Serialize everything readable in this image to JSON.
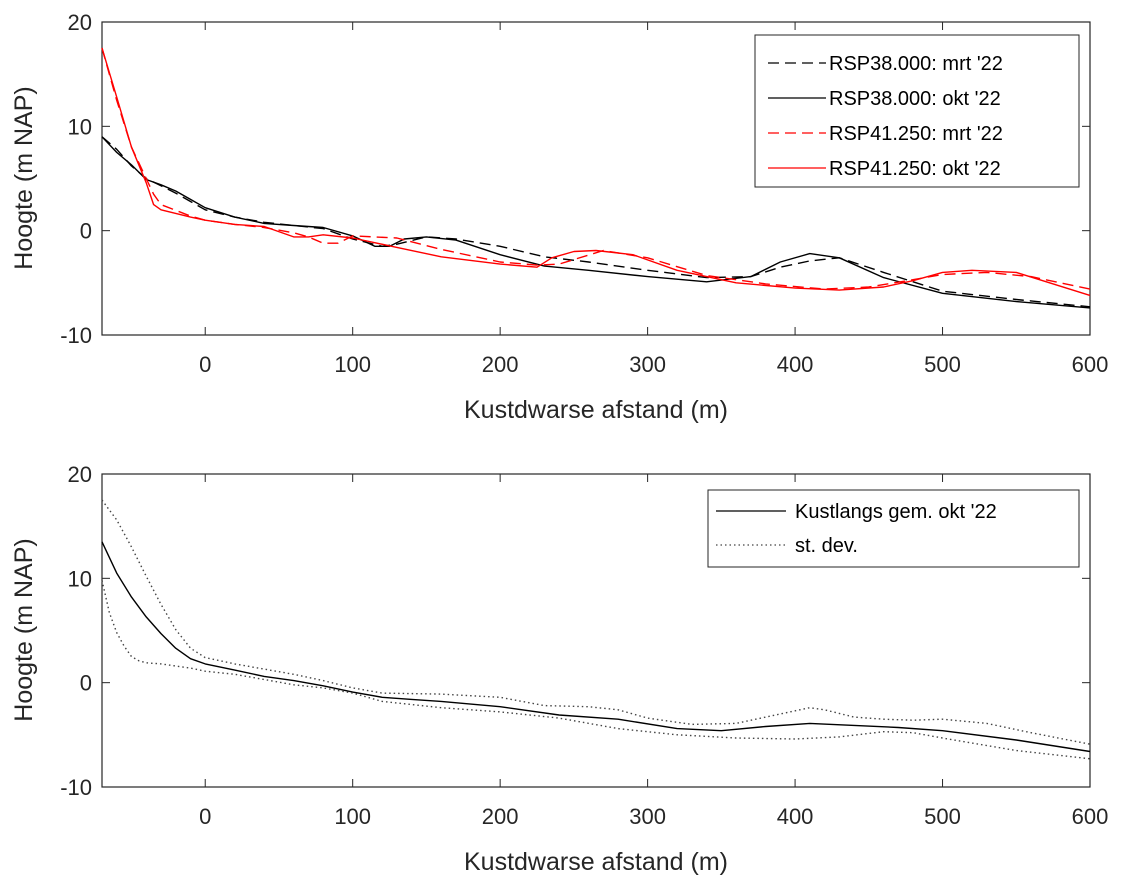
{
  "chart_data": [
    {
      "type": "line",
      "xlabel": "Kustdwarse afstand (m)",
      "ylabel": "Hoogte (m NAP)",
      "xlim": [
        -70,
        600
      ],
      "ylim": [
        -10,
        20
      ],
      "xticks": [
        "0",
        "100",
        "200",
        "300",
        "400",
        "500",
        "600"
      ],
      "yticks": [
        "-10",
        "0",
        "10",
        "20"
      ],
      "legend_position": "top-right",
      "series": [
        {
          "name": "RSP38.000: mrt '22",
          "color": "#000000",
          "style": "dashed",
          "x": [
            -70,
            -60,
            -50,
            -40,
            -30,
            -20,
            -10,
            0,
            20,
            40,
            60,
            80,
            100,
            120,
            130,
            150,
            170,
            200,
            230,
            260,
            300,
            340,
            370,
            390,
            410,
            430,
            460,
            500,
            550,
            600
          ],
          "y": [
            9,
            7.8,
            6.2,
            5,
            4.3,
            3.6,
            2.8,
            2,
            1.3,
            0.8,
            0.5,
            0.2,
            -0.8,
            -1.5,
            -1.3,
            -0.6,
            -0.8,
            -1.5,
            -2.5,
            -3,
            -3.8,
            -4.5,
            -4.4,
            -3.5,
            -2.9,
            -2.6,
            -4,
            -5.8,
            -6.6,
            -7.3
          ]
        },
        {
          "name": "RSP38.000: okt '22",
          "color": "#000000",
          "style": "solid",
          "x": [
            -70,
            -60,
            -50,
            -40,
            -30,
            -20,
            -10,
            0,
            20,
            40,
            60,
            80,
            100,
            115,
            125,
            135,
            150,
            170,
            200,
            230,
            260,
            300,
            340,
            370,
            390,
            410,
            430,
            460,
            500,
            550,
            600
          ],
          "y": [
            9,
            7.5,
            6.3,
            4.9,
            4.4,
            3.8,
            3,
            2.2,
            1.3,
            0.7,
            0.5,
            0.3,
            -0.5,
            -1.5,
            -1.5,
            -0.8,
            -0.6,
            -0.9,
            -2.3,
            -3.4,
            -3.8,
            -4.4,
            -4.9,
            -4.4,
            -3,
            -2.2,
            -2.6,
            -4.5,
            -6,
            -6.8,
            -7.4
          ]
        },
        {
          "name": "RSP41.250: mrt '22",
          "color": "#ff0000",
          "style": "dashed",
          "x": [
            -70,
            -60,
            -50,
            -40,
            -35,
            -30,
            -10,
            0,
            20,
            40,
            60,
            70,
            80,
            90,
            100,
            130,
            160,
            200,
            225,
            240,
            270,
            300,
            340,
            380,
            420,
            450,
            480,
            500,
            530,
            560,
            600
          ],
          "y": [
            17.5,
            12.5,
            8,
            5,
            3.5,
            2.5,
            1.4,
            1,
            0.6,
            0.3,
            -0.2,
            -0.6,
            -1.2,
            -1.2,
            -0.5,
            -0.7,
            -1.8,
            -3,
            -3.3,
            -3.2,
            -1.9,
            -2.6,
            -4.3,
            -5.1,
            -5.6,
            -5.4,
            -4.7,
            -4.2,
            -4,
            -4.4,
            -5.6
          ]
        },
        {
          "name": "RSP41.250: okt '22",
          "color": "#ff0000",
          "style": "solid",
          "x": [
            -70,
            -60,
            -50,
            -40,
            -35,
            -30,
            -10,
            0,
            20,
            40,
            60,
            70,
            80,
            100,
            130,
            160,
            200,
            225,
            235,
            250,
            265,
            290,
            320,
            360,
            400,
            430,
            460,
            480,
            500,
            520,
            550,
            600
          ],
          "y": [
            17.5,
            12.8,
            8,
            4.6,
            2.5,
            2,
            1.3,
            1,
            0.6,
            0.4,
            -0.6,
            -0.6,
            -0.4,
            -0.7,
            -1.6,
            -2.5,
            -3.2,
            -3.5,
            -2.6,
            -2,
            -1.9,
            -2.3,
            -3.8,
            -5,
            -5.5,
            -5.7,
            -5.4,
            -4.8,
            -4,
            -3.8,
            -4,
            -6.2
          ]
        }
      ]
    },
    {
      "type": "line",
      "xlabel": "Kustdwarse afstand (m)",
      "ylabel": "Hoogte (m NAP)",
      "xlim": [
        -70,
        600
      ],
      "ylim": [
        -10,
        20
      ],
      "xticks": [
        "0",
        "100",
        "200",
        "300",
        "400",
        "500",
        "600"
      ],
      "yticks": [
        "-10",
        "0",
        "10",
        "20"
      ],
      "legend_position": "top-right",
      "series": [
        {
          "name": "Kustlangs gem. okt '22",
          "color": "#000000",
          "style": "solid",
          "x": [
            -70,
            -60,
            -50,
            -40,
            -30,
            -20,
            -10,
            0,
            20,
            40,
            60,
            80,
            100,
            120,
            140,
            160,
            200,
            240,
            280,
            320,
            350,
            380,
            410,
            440,
            470,
            500,
            550,
            600
          ],
          "y": [
            13.5,
            10.5,
            8.2,
            6.3,
            4.7,
            3.3,
            2.3,
            1.8,
            1.2,
            0.6,
            0.2,
            -0.3,
            -0.9,
            -1.4,
            -1.6,
            -1.8,
            -2.3,
            -3.1,
            -3.5,
            -4.4,
            -4.6,
            -4.2,
            -3.9,
            -4.1,
            -4.3,
            -4.6,
            -5.5,
            -6.6
          ]
        },
        {
          "name": "st. dev.",
          "color": "#444444",
          "style": "dotted",
          "x": [
            -70,
            -60,
            -50,
            -40,
            -30,
            -20,
            -10,
            0,
            20,
            40,
            60,
            80,
            100,
            120,
            160,
            200,
            230,
            260,
            280,
            300,
            330,
            360,
            390,
            410,
            420,
            440,
            460,
            480,
            500,
            530,
            560,
            600
          ],
          "y": [
            17.5,
            15.6,
            13,
            10.2,
            7.5,
            5.1,
            3.3,
            2.4,
            1.8,
            1.3,
            0.8,
            0.2,
            -0.5,
            -1,
            -1.1,
            -1.4,
            -2.2,
            -2.3,
            -2.6,
            -3.4,
            -4,
            -3.9,
            -3,
            -2.4,
            -2.6,
            -3.3,
            -3.5,
            -3.6,
            -3.5,
            -3.9,
            -4.8,
            -5.9
          ]
        },
        {
          "name": "",
          "color": "#444444",
          "style": "dotted",
          "x": [
            -70,
            -65,
            -60,
            -55,
            -50,
            -45,
            -40,
            -30,
            -20,
            -10,
            0,
            20,
            40,
            60,
            80,
            100,
            120,
            160,
            200,
            240,
            280,
            320,
            360,
            400,
            430,
            460,
            480,
            500,
            550,
            600
          ],
          "y": [
            9.8,
            6.7,
            4.8,
            3.5,
            2.5,
            2.1,
            1.9,
            1.8,
            1.6,
            1.4,
            1.1,
            0.8,
            0.3,
            -0.2,
            -0.5,
            -1,
            -1.8,
            -2.4,
            -2.8,
            -3.4,
            -4.4,
            -5,
            -5.3,
            -5.4,
            -5.2,
            -4.7,
            -4.8,
            -5.3,
            -6.5,
            -7.3
          ]
        }
      ]
    }
  ]
}
